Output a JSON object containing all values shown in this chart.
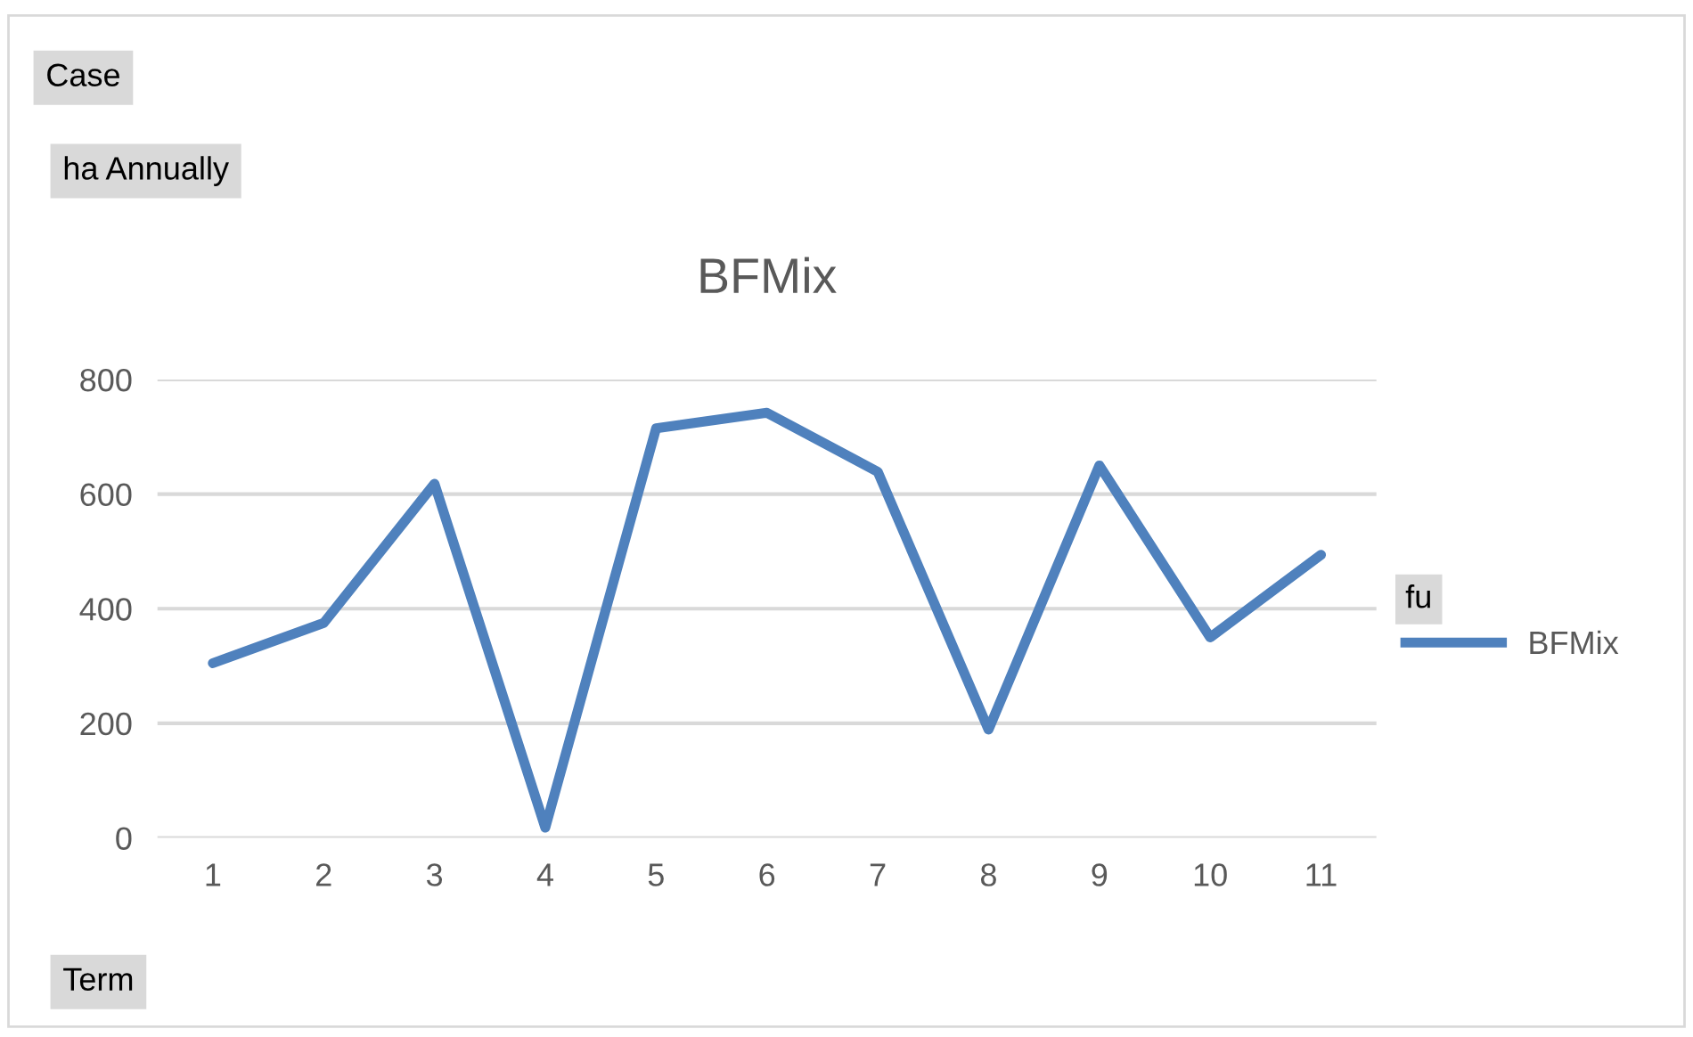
{
  "chart_data": {
    "type": "line",
    "title": "BFMix",
    "categories": [
      "1",
      "2",
      "3",
      "4",
      "5",
      "6",
      "7",
      "8",
      "9",
      "10",
      "11"
    ],
    "series": [
      {
        "name": "BFMix",
        "color": "#4f81bd",
        "values": [
          305,
          375,
          618,
          18,
          715,
          742,
          639,
          189,
          650,
          350,
          494
        ]
      }
    ],
    "ylim": [
      0,
      800
    ],
    "yticks": [
      0,
      200,
      400,
      600,
      800
    ],
    "grid": "y",
    "legend": "right",
    "legend_title": "fu",
    "marker": "none",
    "line_style": "solid",
    "annotations": [
      "Case",
      "ha Annually",
      "Term"
    ]
  }
}
